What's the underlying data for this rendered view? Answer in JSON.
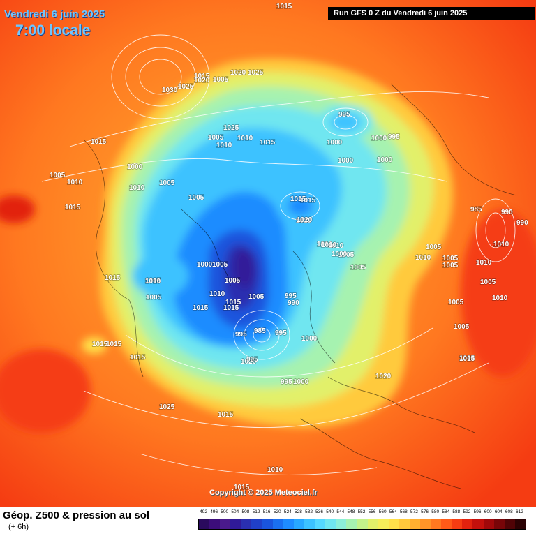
{
  "header": {
    "date": "Vendredi 6 juin 2025",
    "time": "7:00 locale",
    "run": "Run GFS 0 Z du Vendredi 6 juin 2025"
  },
  "footer": {
    "title": "Géop. Z500 & pression au sol",
    "subtitle": "(+ 6h)",
    "copyright": "Copyright © 2025 Meteociel.fr"
  },
  "legend": {
    "values": [
      "492",
      "496",
      "500",
      "504",
      "508",
      "512",
      "516",
      "520",
      "524",
      "528",
      "532",
      "536",
      "540",
      "544",
      "548",
      "552",
      "556",
      "560",
      "564",
      "568",
      "572",
      "576",
      "580",
      "584",
      "588",
      "592",
      "596",
      "600",
      "604",
      "608",
      "612"
    ],
    "colors": [
      "#2a0a5e",
      "#3c0d7a",
      "#4a1a8c",
      "#301a99",
      "#2a2fb0",
      "#2040c8",
      "#1a55dd",
      "#1a70f0",
      "#1e8cff",
      "#28a8ff",
      "#3cc2ff",
      "#55d8ff",
      "#70e6f0",
      "#8cefd8",
      "#a6f2b0",
      "#c4f28a",
      "#e2f06a",
      "#f6ee5a",
      "#ffe04a",
      "#ffca3c",
      "#ffb030",
      "#ff9428",
      "#ff7820",
      "#ff5a18",
      "#f53c12",
      "#e2220e",
      "#c4100c",
      "#a0080a",
      "#780508",
      "#500306",
      "#2a0103"
    ]
  },
  "isobars": [
    "1015",
    "1030",
    "1025",
    "1015",
    "1020",
    "1005",
    "1025",
    "1020",
    "1025",
    "1010",
    "1005",
    "1010",
    "1015",
    "1015",
    "1010",
    "1005",
    "1000",
    "1010",
    "1005",
    "1005",
    "1015",
    "1015",
    "1005",
    "1000",
    "1020",
    "1015",
    "1010",
    "1005",
    "1020",
    "1025",
    "1015",
    "1010",
    "995",
    "1000",
    "995",
    "1000",
    "1000",
    "1000",
    "1015",
    "1020",
    "1010",
    "1000",
    "1005",
    "1005",
    "1015",
    "1010",
    "1005",
    "1015",
    "1005",
    "1015",
    "995",
    "990",
    "985",
    "995",
    "995",
    "1000",
    "995",
    "1000",
    "995",
    "1020",
    "1015",
    "1005",
    "1010",
    "1015",
    "1015",
    "985",
    "990",
    "1010",
    "990",
    "1005",
    "1010",
    "1005",
    "1005",
    "1010",
    "1005",
    "1005",
    "1005",
    "1005",
    "1010",
    "1015",
    "1010",
    "1015"
  ]
}
